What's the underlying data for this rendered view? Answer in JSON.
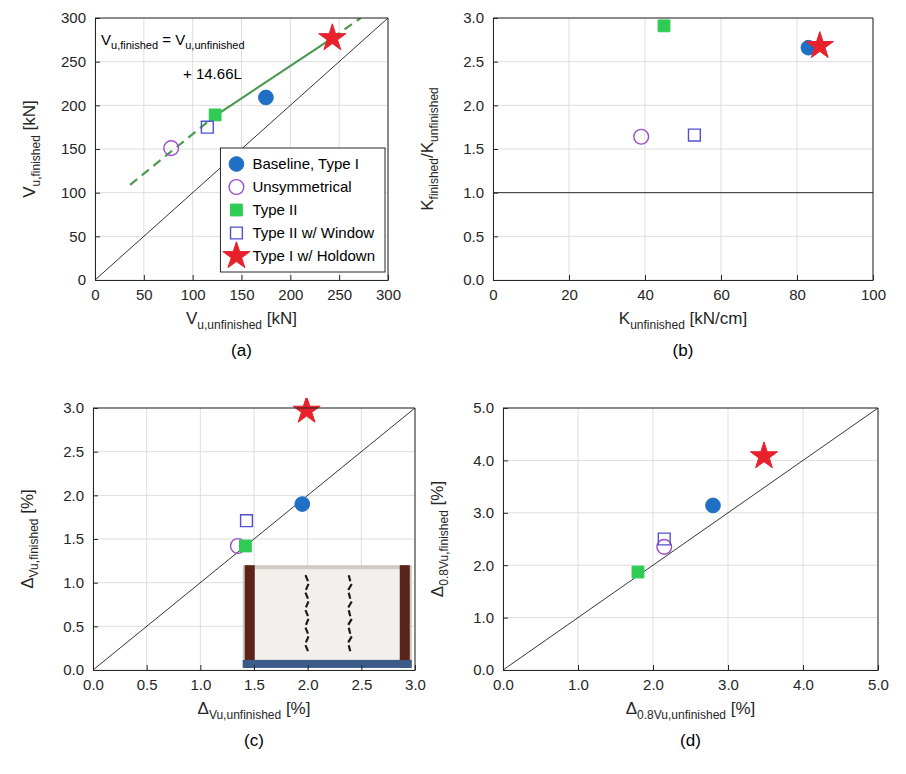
{
  "chart_data": [
    {
      "type": "scatter",
      "title": "(a)",
      "x_label": "Vu,unfinished [kN]",
      "y_label": "Vu,finished [kN]",
      "annotation": [
        "Vu,finished = Vu,unfinished",
        "+ 14.66L"
      ],
      "xlim": [
        0,
        300
      ],
      "ylim": [
        0,
        300
      ],
      "xticks": [
        0,
        50,
        100,
        150,
        200,
        250,
        300
      ],
      "yticks": [
        0,
        50,
        100,
        150,
        200,
        250,
        300
      ],
      "grid": true,
      "legend": "lower right",
      "series": [
        {
          "name": "Baseline, Type I",
          "color": "#1f6fc5",
          "marker": "circle",
          "x": [
            175
          ],
          "values": [
            209
          ]
        },
        {
          "name": "Unsymmetrical",
          "color": "#9b4fc4",
          "marker": "circle-open",
          "x": [
            78
          ],
          "values": [
            151
          ]
        },
        {
          "name": "Type II",
          "color": "#2ecc55",
          "marker": "square",
          "x": [
            123
          ],
          "values": [
            189
          ]
        },
        {
          "name": "Type II w/ Window",
          "color": "#5050d0",
          "marker": "square-open",
          "x": [
            115
          ],
          "values": [
            175
          ]
        },
        {
          "name": "Type I w/ Holdown",
          "color": "#e8212b",
          "marker": "star",
          "x": [
            243
          ],
          "values": [
            277
          ]
        },
        {
          "type": "line",
          "color": "#000000",
          "line_style": "solid",
          "x": [
            0,
            300
          ],
          "values": [
            0,
            300
          ]
        },
        {
          "type": "line",
          "color": "#4c9a52",
          "line_style": "dashed",
          "x": [
            36,
            123
          ],
          "values": [
            109,
            188
          ]
        },
        {
          "type": "line",
          "color": "#4c9a52",
          "line_style": "solid",
          "x": [
            123,
            243
          ],
          "values": [
            188,
            277
          ]
        },
        {
          "type": "line",
          "color": "#4c9a52",
          "line_style": "dashed",
          "x": [
            243,
            272
          ],
          "values": [
            277,
            300
          ]
        }
      ]
    },
    {
      "type": "scatter",
      "title": "(b)",
      "x_label": "Kunfinished [kN/cm]",
      "y_label": "Kfinished/Kunfinished",
      "xlim": [
        0,
        100
      ],
      "ylim": [
        0,
        3
      ],
      "xticks": [
        0,
        20,
        40,
        60,
        80,
        100
      ],
      "yticks": [
        {
          "value": 0,
          "label": "0.0"
        },
        0.5,
        {
          "value": 1,
          "label": "1.0"
        },
        1.5,
        {
          "value": 2,
          "label": "2.0"
        },
        2.5,
        {
          "value": 3,
          "label": "3.0"
        }
      ],
      "grid": true,
      "series": [
        {
          "color": "#1f6fc5",
          "marker": "circle",
          "x": [
            83
          ],
          "values": [
            2.66
          ]
        },
        {
          "color": "#9b4fc4",
          "marker": "circle-open",
          "x": [
            39
          ],
          "values": [
            1.64
          ]
        },
        {
          "color": "#2ecc55",
          "marker": "square",
          "x": [
            45
          ],
          "values": [
            2.91
          ]
        },
        {
          "color": "#5050d0",
          "marker": "square-open",
          "x": [
            53
          ],
          "values": [
            1.66
          ]
        },
        {
          "color": "#e8212b",
          "marker": "star",
          "x": [
            86
          ],
          "values": [
            2.68
          ]
        },
        {
          "type": "line",
          "color": "#000000",
          "line_style": "solid",
          "x": [
            0,
            100
          ],
          "values": [
            1,
            1
          ]
        }
      ]
    },
    {
      "type": "scatter",
      "title": "(c)",
      "x_label": "ΔVu,unfinished [%]",
      "y_label": "ΔVu,finished [%]",
      "xlim": [
        0,
        3
      ],
      "ylim": [
        0,
        3
      ],
      "xticks": [
        {
          "value": 0,
          "label": "0.0"
        },
        0.5,
        {
          "value": 1,
          "label": "1.0"
        },
        1.5,
        {
          "value": 2,
          "label": "2.0"
        },
        2.5,
        {
          "value": 3,
          "label": "3.0"
        }
      ],
      "yticks": [
        {
          "value": 0,
          "label": "0.0"
        },
        0.5,
        {
          "value": 1,
          "label": "1.0"
        },
        1.5,
        {
          "value": 2,
          "label": "2.0"
        },
        2.5,
        {
          "value": 3,
          "label": "3.0"
        }
      ],
      "grid": true,
      "series": [
        {
          "color": "#1f6fc5",
          "marker": "circle",
          "x": [
            1.95
          ],
          "values": [
            1.9
          ]
        },
        {
          "color": "#9b4fc4",
          "marker": "circle-open",
          "x": [
            1.35
          ],
          "values": [
            1.42
          ]
        },
        {
          "color": "#2ecc55",
          "marker": "square",
          "x": [
            1.42
          ],
          "values": [
            1.42
          ]
        },
        {
          "color": "#5050d0",
          "marker": "square-open",
          "x": [
            1.43
          ],
          "values": [
            1.71
          ]
        },
        {
          "color": "#e8212b",
          "marker": "star",
          "x": [
            1.99
          ],
          "values": [
            2.97
          ]
        },
        {
          "type": "line",
          "color": "#000000",
          "line_style": "solid",
          "x": [
            0,
            3
          ],
          "values": [
            0,
            3
          ]
        }
      ]
    },
    {
      "type": "scatter",
      "title": "(d)",
      "x_label": "Δ0.8Vu,unfinished [%]",
      "y_label": "Δ0.8Vu,finished [%]",
      "xlim": [
        0,
        5
      ],
      "ylim": [
        0,
        5
      ],
      "xticks": [
        {
          "value": 0,
          "label": "0.0"
        },
        {
          "value": 1,
          "label": "1.0"
        },
        {
          "value": 2,
          "label": "2.0"
        },
        {
          "value": 3,
          "label": "3.0"
        },
        {
          "value": 4,
          "label": "4.0"
        },
        {
          "value": 5,
          "label": "5.0"
        }
      ],
      "yticks": [
        {
          "value": 0,
          "label": "0.0"
        },
        {
          "value": 1,
          "label": "1.0"
        },
        {
          "value": 2,
          "label": "2.0"
        },
        {
          "value": 3,
          "label": "3.0"
        },
        {
          "value": 4,
          "label": "4.0"
        },
        {
          "value": 5,
          "label": "5.0"
        }
      ],
      "grid": true,
      "series": [
        {
          "color": "#1f6fc5",
          "marker": "circle",
          "x": [
            2.8
          ],
          "values": [
            3.14
          ]
        },
        {
          "color": "#9b4fc4",
          "marker": "circle-open",
          "x": [
            2.15
          ],
          "values": [
            2.35
          ]
        },
        {
          "color": "#2ecc55",
          "marker": "square",
          "x": [
            1.8
          ],
          "values": [
            1.87
          ]
        },
        {
          "color": "#5050d0",
          "marker": "square-open",
          "x": [
            2.15
          ],
          "values": [
            2.5
          ]
        },
        {
          "color": "#e8212b",
          "marker": "star",
          "x": [
            3.48
          ],
          "values": [
            4.08
          ]
        },
        {
          "type": "line",
          "color": "#000000",
          "line_style": "solid",
          "x": [
            0,
            5
          ],
          "values": [
            0,
            5
          ]
        }
      ]
    }
  ]
}
